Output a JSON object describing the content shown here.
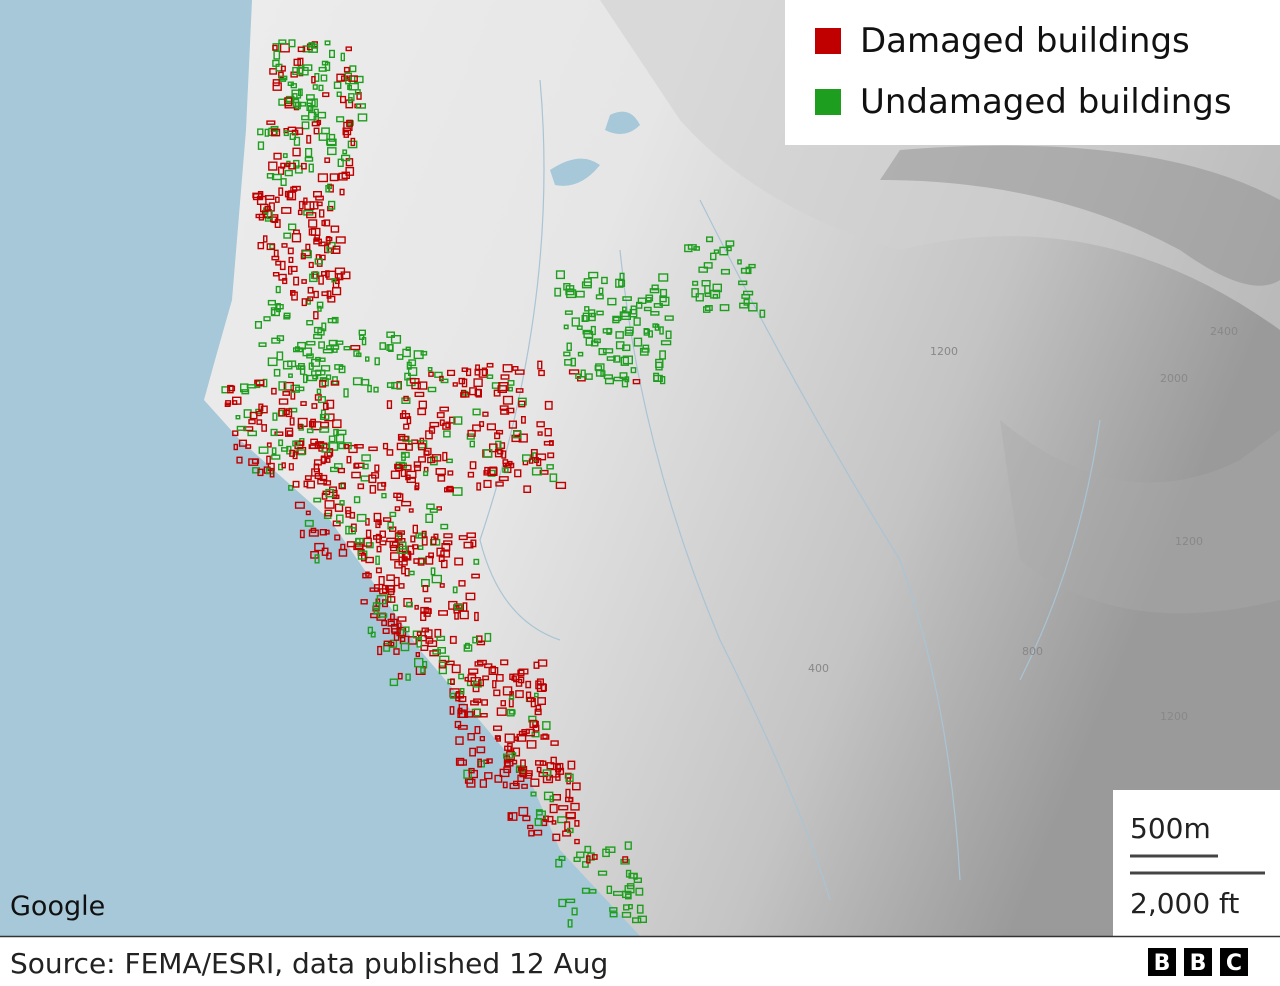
{
  "legend": {
    "items": [
      {
        "label": "Damaged buildings",
        "color": "#c00000"
      },
      {
        "label": "Undamaged buildings",
        "color": "#1e9e1e"
      }
    ]
  },
  "scale": {
    "metric": "500m",
    "imperial": "2,000 ft"
  },
  "attribution": "Google",
  "source": "Source: FEMA/ESRI, data published 12 Aug",
  "logo": [
    "B",
    "B",
    "C"
  ],
  "contour_labels": [
    "1200",
    "2000",
    "2400",
    "1200",
    "400",
    "800",
    "1200"
  ]
}
